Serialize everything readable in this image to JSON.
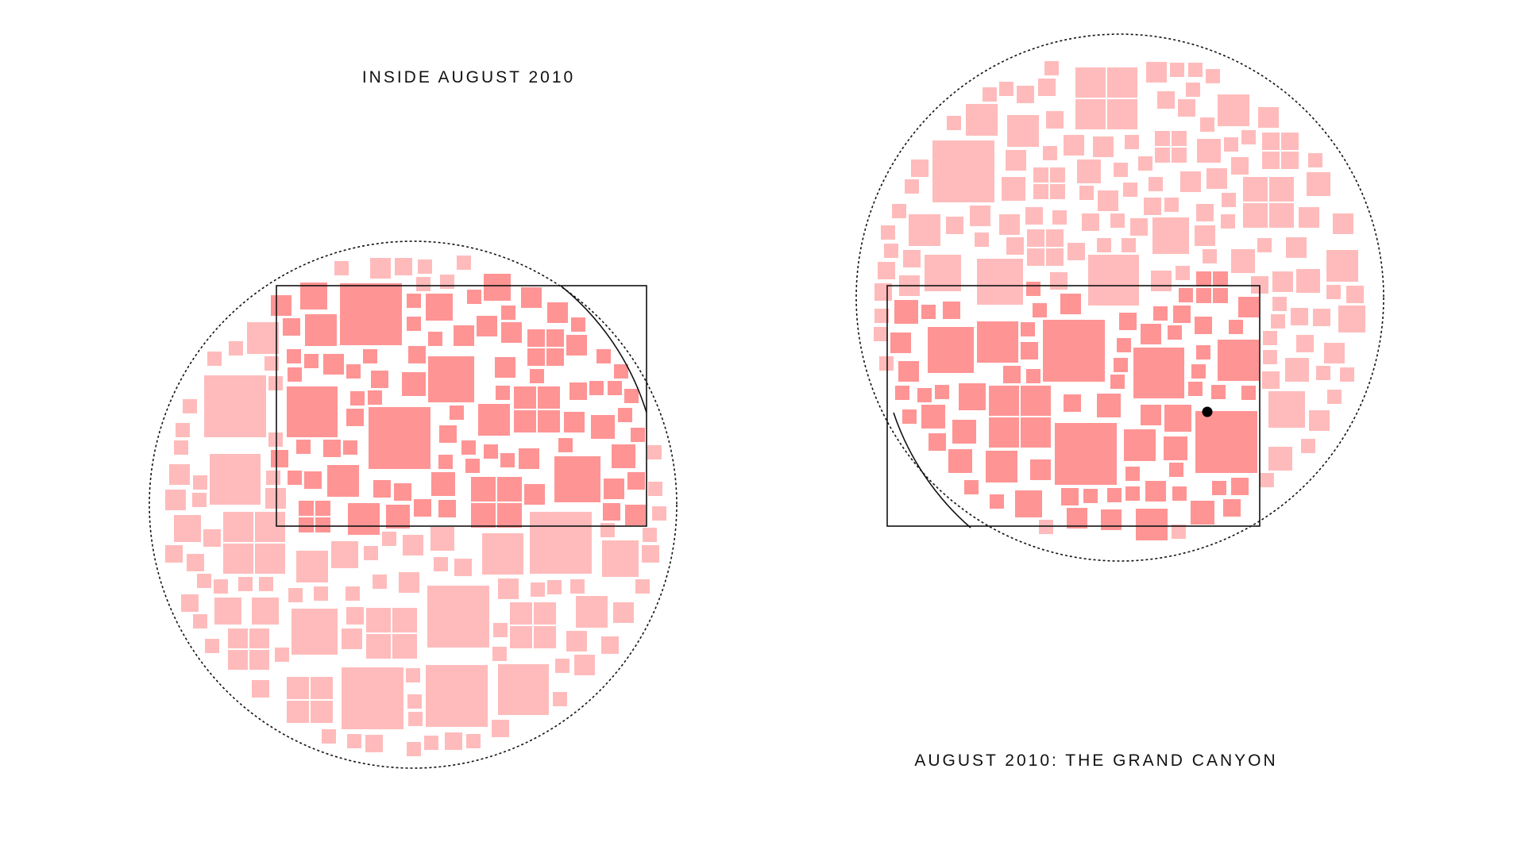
{
  "panels": [
    {
      "id": "left",
      "title": "INSIDE AUGUST 2010",
      "inside_color": "#ff9494",
      "outside_color": "#ffbbbb",
      "frame_color": "#111111",
      "boundary_style": "dotted",
      "tiles_drawn": 215,
      "has_marker": false
    },
    {
      "id": "right",
      "title": "AUGUST 2010: THE GRAND CANYON",
      "inside_color": "#ff9494",
      "outside_color": "#ffbbbb",
      "frame_color": "#111111",
      "boundary_style": "dotted",
      "tiles_drawn": 215,
      "has_marker": true,
      "marker_color": "#000000"
    }
  ]
}
